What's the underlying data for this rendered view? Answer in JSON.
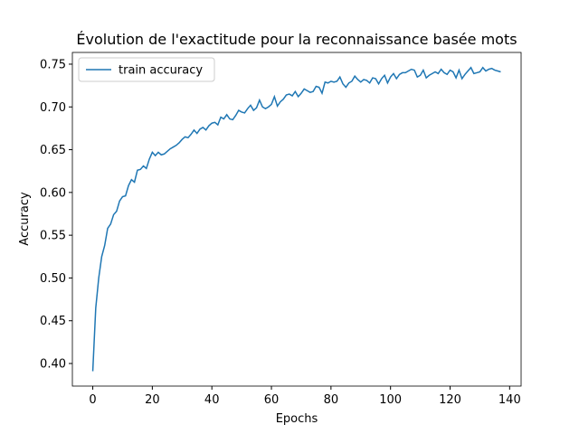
{
  "chart_data": {
    "type": "line",
    "title": "Évolution de l'exactitude pour la reconnaissance basée mots",
    "xlabel": "Epochs",
    "ylabel": "Accuracy",
    "x": [
      0,
      1,
      2,
      3,
      4,
      5,
      6,
      7,
      8,
      9,
      10,
      11,
      12,
      13,
      14,
      15,
      16,
      17,
      18,
      19,
      20,
      21,
      22,
      23,
      24,
      25,
      26,
      27,
      28,
      29,
      30,
      31,
      32,
      33,
      34,
      35,
      36,
      37,
      38,
      39,
      40,
      41,
      42,
      43,
      44,
      45,
      46,
      47,
      48,
      49,
      50,
      51,
      52,
      53,
      54,
      55,
      56,
      57,
      58,
      59,
      60,
      61,
      62,
      63,
      64,
      65,
      66,
      67,
      68,
      69,
      70,
      71,
      72,
      73,
      74,
      75,
      76,
      77,
      78,
      79,
      80,
      81,
      82,
      83,
      84,
      85,
      86,
      87,
      88,
      89,
      90,
      91,
      92,
      93,
      94,
      95,
      96,
      97,
      98,
      99,
      100,
      101,
      102,
      103,
      104,
      105,
      106,
      107,
      108,
      109,
      110,
      111,
      112,
      113,
      114,
      115,
      116,
      117,
      118,
      119,
      120,
      121,
      122,
      123,
      124,
      125,
      126,
      127,
      128,
      129,
      130,
      131,
      132,
      133,
      134,
      135,
      136,
      137
    ],
    "series": [
      {
        "name": "train accuracy",
        "color": "#1f77b4",
        "values": [
          0.391,
          0.465,
          0.5,
          0.525,
          0.538,
          0.558,
          0.563,
          0.574,
          0.578,
          0.59,
          0.595,
          0.596,
          0.608,
          0.615,
          0.612,
          0.626,
          0.627,
          0.631,
          0.628,
          0.639,
          0.647,
          0.643,
          0.647,
          0.644,
          0.645,
          0.648,
          0.651,
          0.653,
          0.655,
          0.658,
          0.662,
          0.665,
          0.664,
          0.668,
          0.673,
          0.669,
          0.674,
          0.676,
          0.673,
          0.678,
          0.681,
          0.682,
          0.679,
          0.688,
          0.686,
          0.691,
          0.686,
          0.685,
          0.69,
          0.696,
          0.694,
          0.693,
          0.698,
          0.702,
          0.696,
          0.699,
          0.708,
          0.7,
          0.698,
          0.7,
          0.703,
          0.712,
          0.701,
          0.706,
          0.709,
          0.714,
          0.715,
          0.713,
          0.718,
          0.712,
          0.716,
          0.721,
          0.719,
          0.717,
          0.718,
          0.724,
          0.723,
          0.716,
          0.729,
          0.728,
          0.73,
          0.729,
          0.73,
          0.735,
          0.727,
          0.723,
          0.728,
          0.73,
          0.736,
          0.732,
          0.729,
          0.732,
          0.731,
          0.728,
          0.734,
          0.733,
          0.727,
          0.733,
          0.737,
          0.728,
          0.735,
          0.739,
          0.733,
          0.738,
          0.74,
          0.74,
          0.742,
          0.744,
          0.743,
          0.735,
          0.737,
          0.743,
          0.734,
          0.737,
          0.739,
          0.741,
          0.739,
          0.744,
          0.74,
          0.738,
          0.743,
          0.741,
          0.734,
          0.743,
          0.733,
          0.738,
          0.742,
          0.746,
          0.739,
          0.74,
          0.741,
          0.746,
          0.742,
          0.744,
          0.745,
          0.743,
          0.742,
          0.741
        ]
      }
    ],
    "xlim": [
      -6.85,
      143.85
    ],
    "xticks": [
      0,
      20,
      40,
      60,
      80,
      100,
      120,
      140
    ],
    "ylim": [
      0.3736,
      0.7637
    ],
    "yticks": [
      {
        "value": 0.4,
        "label": "0.40"
      },
      0.45,
      {
        "value": 0.5,
        "label": "0.50"
      },
      0.55,
      {
        "value": 0.6,
        "label": "0.60"
      },
      0.65,
      {
        "value": 0.7,
        "label": "0.70"
      },
      0.75
    ],
    "legend": "upper left"
  }
}
